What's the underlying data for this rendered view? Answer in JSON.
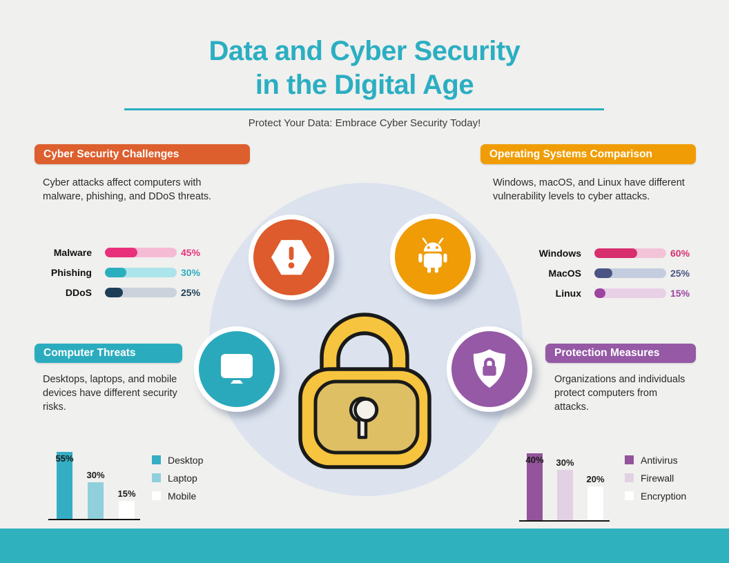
{
  "header": {
    "title_line1": "Data and Cyber Security",
    "title_line2": "in the Digital Age",
    "subtitle": "Protect Your Data: Embrace Cyber Security Today!",
    "accent_color": "#2baec2"
  },
  "sections": {
    "challenges": {
      "badge": "Cyber Security Challenges",
      "badge_color": "#dd5f2e",
      "description": "Cyber attacks affect computers with malware, phishing, and DDoS threats."
    },
    "os": {
      "badge": "Operating Systems Comparison",
      "badge_color": "#f09d05",
      "description": "Windows, macOS, and Linux have different vulnerability levels to cyber attacks."
    },
    "threats": {
      "badge": "Computer Threats",
      "badge_color": "#2bacbe",
      "description": "Desktops, laptops, and mobile devices have different security risks."
    },
    "protection": {
      "badge": "Protection Measures",
      "badge_color": "#9559a5",
      "description": "Organizations and individuals protect computers from attacks."
    }
  },
  "chart_data": [
    {
      "id": "challenges-bars",
      "type": "bar",
      "orientation": "horizontal",
      "title": "Cyber Security Challenges",
      "categories": [
        "Malware",
        "Phishing",
        "DDoS"
      ],
      "values": [
        45,
        30,
        25
      ],
      "value_labels": [
        "45%",
        "30%",
        "25%"
      ],
      "colors": [
        "#e9317b",
        "#2baebe",
        "#1e3e57"
      ],
      "track_colors": [
        "#f6bbd4",
        "#abe4ea",
        "#cbd2db"
      ],
      "xlim": [
        0,
        100
      ],
      "grid": false,
      "legend_position": "none"
    },
    {
      "id": "os-bars",
      "type": "bar",
      "orientation": "horizontal",
      "title": "Operating Systems Comparison",
      "categories": [
        "Windows",
        "MacOS",
        "Linux"
      ],
      "values": [
        60,
        25,
        15
      ],
      "value_labels": [
        "60%",
        "25%",
        "15%"
      ],
      "colors": [
        "#d72e6e",
        "#4a5583",
        "#9c44a0"
      ],
      "track_colors": [
        "#f3c3d8",
        "#c4ccdf",
        "#e8d0e6"
      ],
      "xlim": [
        0,
        100
      ],
      "grid": false,
      "legend_position": "none"
    },
    {
      "id": "threats-columns",
      "type": "bar",
      "orientation": "vertical",
      "title": "Computer Threats",
      "categories": [
        "Desktop",
        "Laptop",
        "Mobile"
      ],
      "values": [
        55,
        30,
        15
      ],
      "value_labels": [
        "55%",
        "30%",
        "15%"
      ],
      "colors": [
        "#35aec4",
        "#8fd0dc",
        "#ffffff"
      ],
      "legend": [
        "Desktop",
        "Laptop",
        "Mobile"
      ],
      "legend_position": "right",
      "grid": false
    },
    {
      "id": "protection-columns",
      "type": "bar",
      "orientation": "vertical",
      "title": "Protection Measures",
      "categories": [
        "Antivirus",
        "Firewall",
        "Encryption"
      ],
      "values": [
        40,
        30,
        20
      ],
      "value_labels": [
        "40%",
        "30%",
        "20%"
      ],
      "colors": [
        "#94549b",
        "#e2d0e3",
        "#ffffff"
      ],
      "legend": [
        "Antivirus",
        "Firewall",
        "Encryption"
      ],
      "legend_position": "right",
      "grid": false
    }
  ],
  "center": {
    "hub_color": "#dce3ef",
    "icons": {
      "warning": {
        "label": "warning",
        "color": "#dd5b2c"
      },
      "android": {
        "label": "android",
        "color": "#ef9c07"
      },
      "monitor": {
        "label": "monitor",
        "color": "#2ba9bc"
      },
      "shield": {
        "label": "shield-lock",
        "color": "#9559a5"
      }
    },
    "padlock": {
      "body_color": "#f6c43e",
      "inner_color": "#debf63",
      "keyhole_color": "#f3f1ea"
    }
  },
  "footer": {
    "color": "#2fb2be"
  }
}
